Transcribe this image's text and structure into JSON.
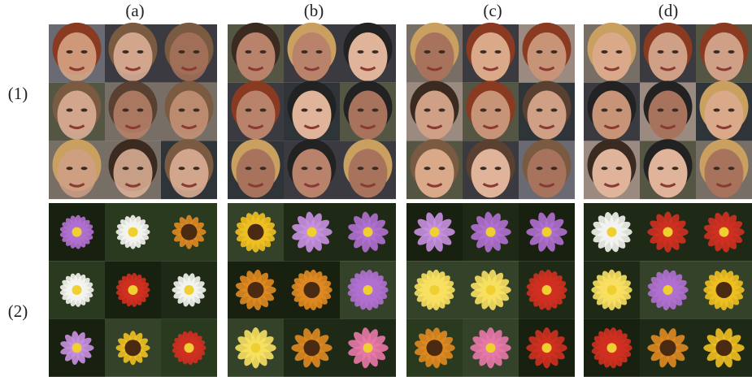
{
  "columns": [
    "(a)",
    "(b)",
    "(c)",
    "(d)"
  ],
  "rows": [
    "(1)",
    "(2)"
  ]
}
